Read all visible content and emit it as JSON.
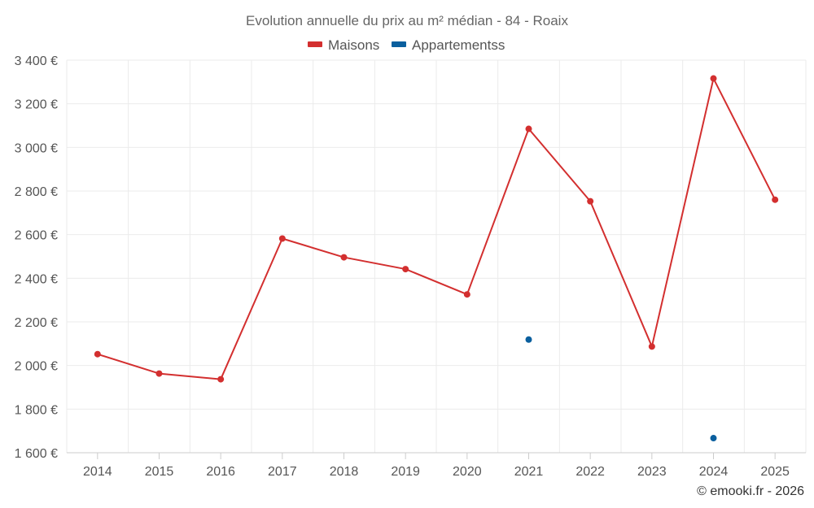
{
  "chart_data": {
    "type": "line",
    "title": "Evolution annuelle du prix au m² médian - 84 - Roaix",
    "categories": [
      "2014",
      "2015",
      "2016",
      "2017",
      "2018",
      "2019",
      "2020",
      "2021",
      "2022",
      "2023",
      "2024",
      "2025"
    ],
    "series": [
      {
        "name": "Maisons",
        "color": "#d32f2f",
        "values": [
          2052,
          1963,
          1937,
          2582,
          2496,
          2442,
          2326,
          3085,
          2753,
          2087,
          3316,
          2760
        ]
      },
      {
        "name": "Appartementss",
        "color": "#0a5f9e",
        "values": [
          null,
          null,
          null,
          null,
          null,
          null,
          null,
          2119,
          null,
          null,
          1667,
          null
        ]
      }
    ],
    "yticks": [
      1600,
      1800,
      2000,
      2200,
      2400,
      2600,
      2800,
      3000,
      3200,
      3400
    ],
    "ytick_labels": [
      "1 600 €",
      "1 800 €",
      "2 000 €",
      "2 200 €",
      "2 400 €",
      "2 600 €",
      "2 800 €",
      "3 000 €",
      "3 200 €",
      "3 400 €"
    ],
    "ylim": [
      1600,
      3400
    ],
    "xlabel": "",
    "ylabel": "",
    "legend_position": "top-center",
    "grid": true
  },
  "credit": "© emooki.fr - 2026"
}
